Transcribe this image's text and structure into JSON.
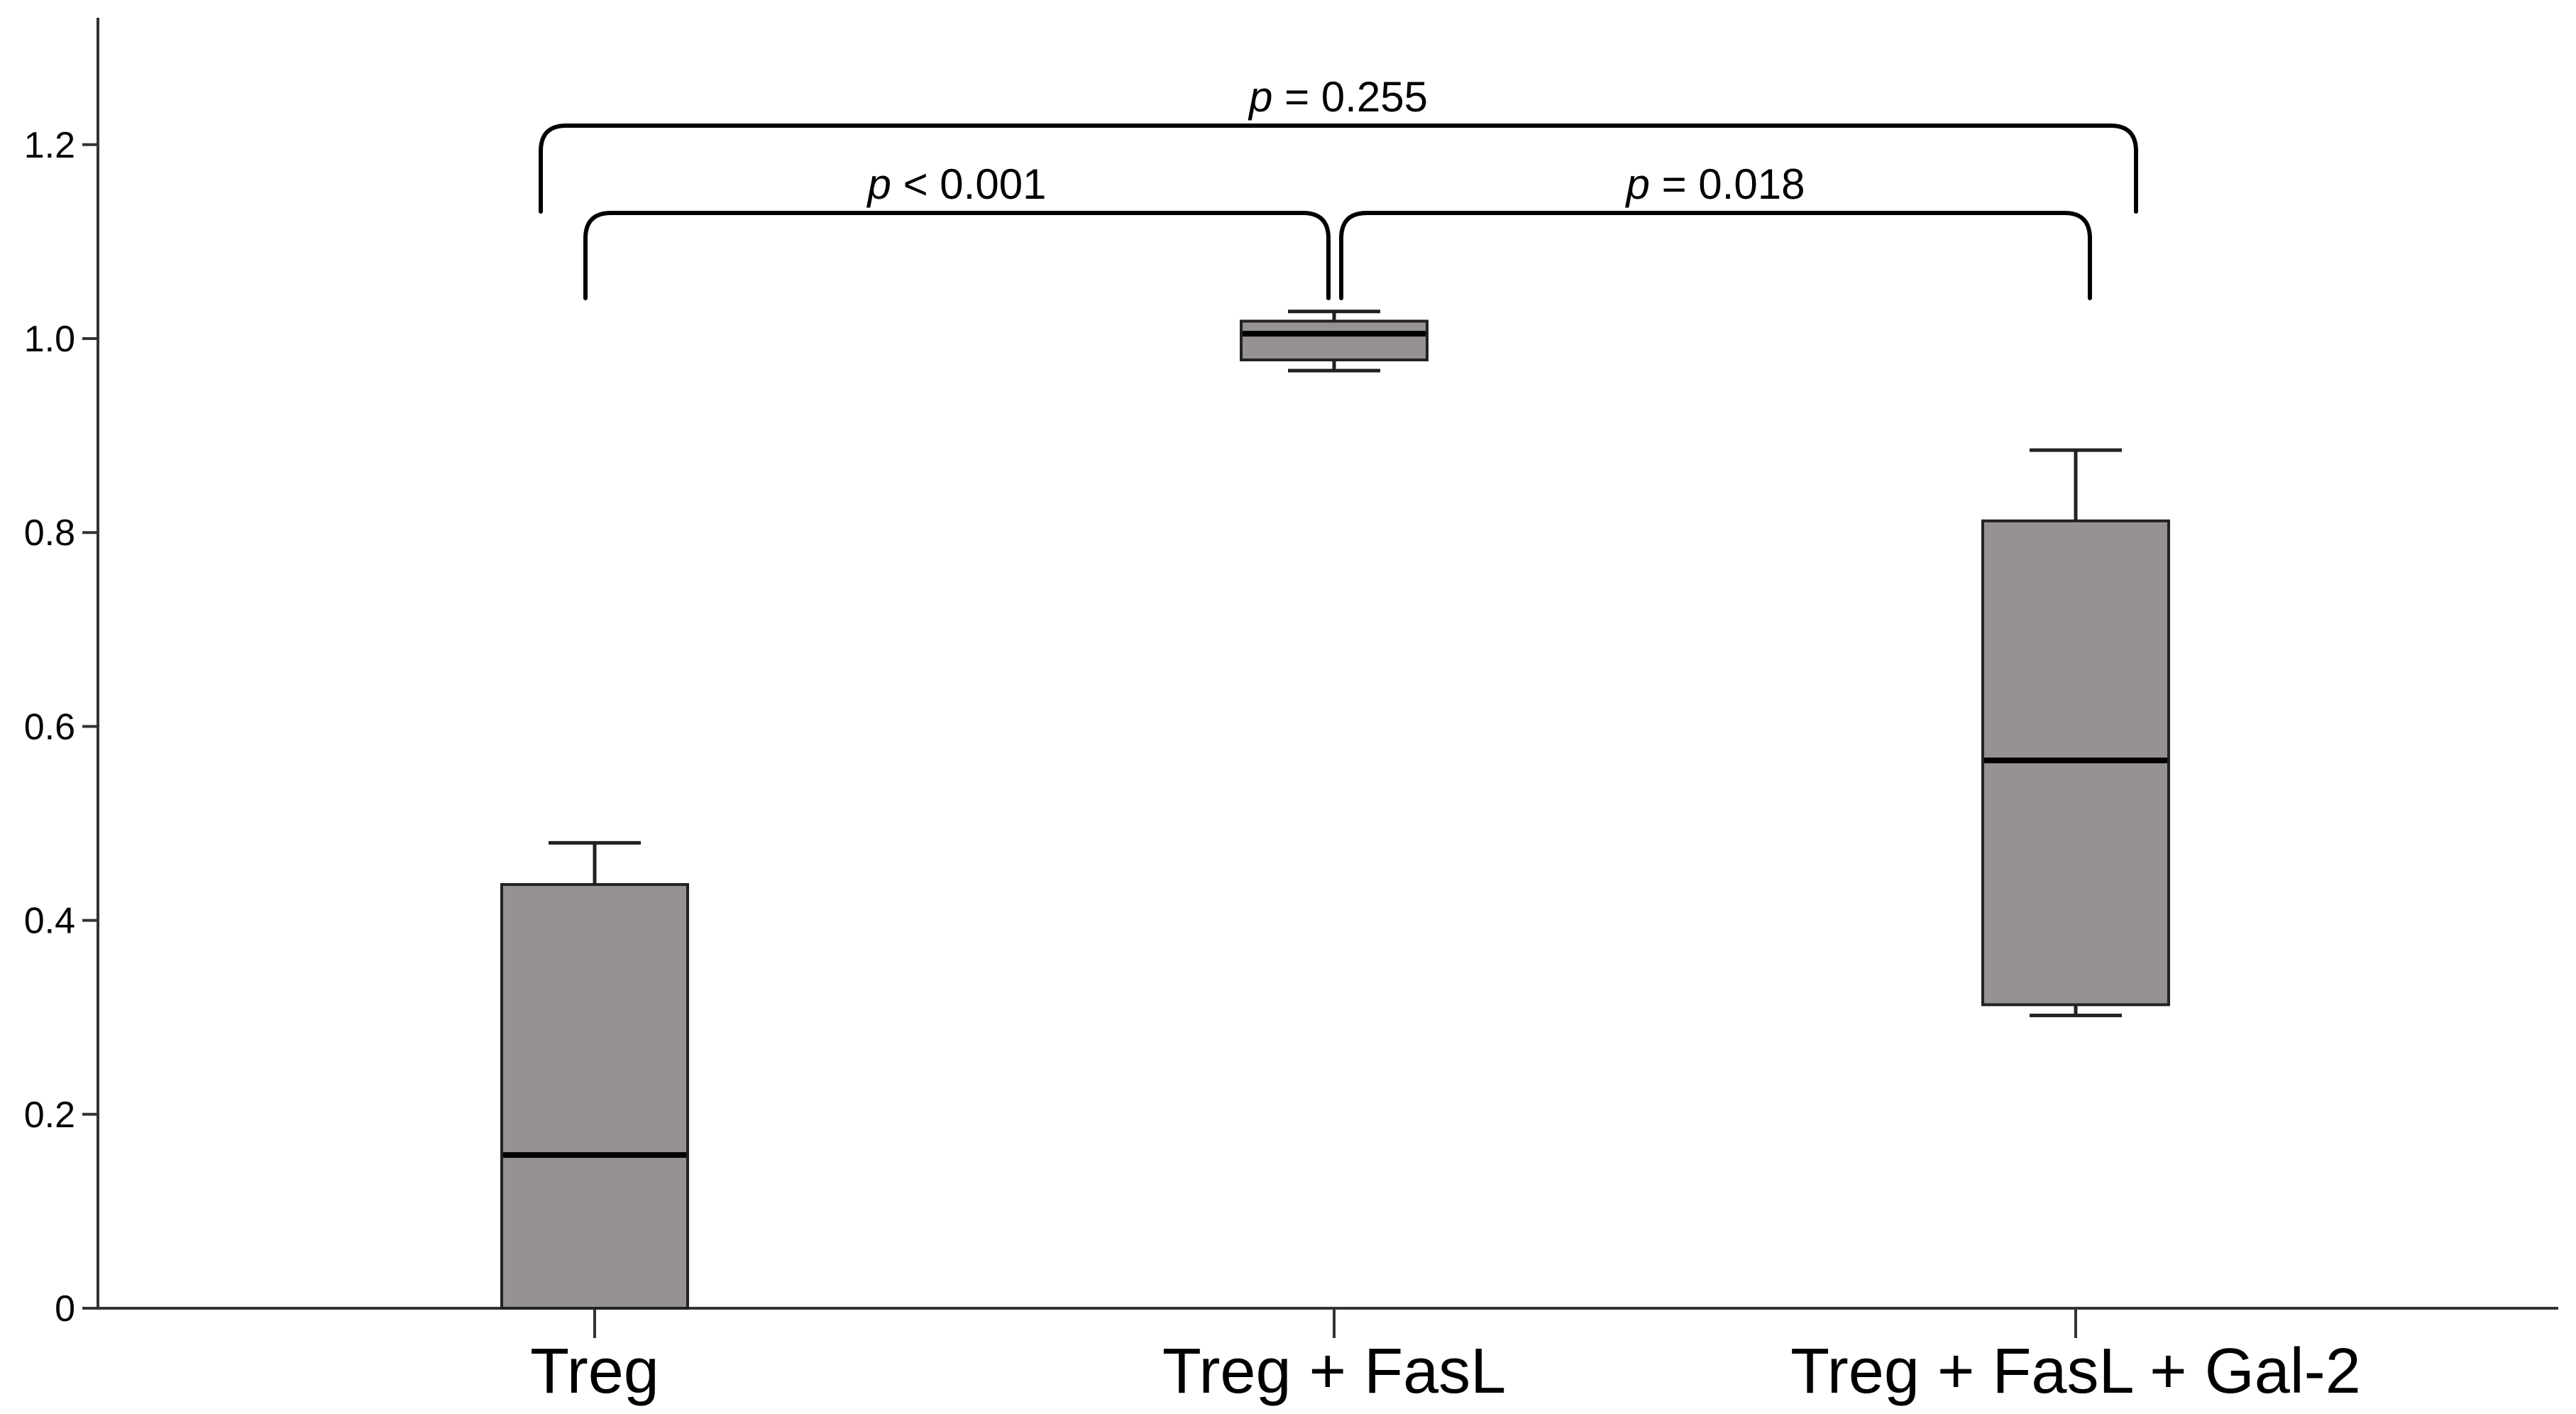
{
  "chart_data": {
    "type": "box",
    "title": "",
    "xlabel": "",
    "ylabel": "",
    "ylim": [
      0,
      1.3
    ],
    "yticks": [
      0,
      0.2,
      0.4,
      0.6,
      0.8,
      1.0,
      1.2
    ],
    "ytick_labels": [
      "0",
      "0.2",
      "0.4",
      "0.6",
      "0.8",
      "1.0",
      "1.2"
    ],
    "grid": false,
    "box_color": "#969291",
    "categories": [
      "Treg",
      "Treg + FasL",
      "Treg + FasL + Gal-2"
    ],
    "boxes": [
      {
        "name": "Treg",
        "min": 0.0,
        "q1": 0.0,
        "median": 0.158,
        "q3": 0.437,
        "max": 0.48
      },
      {
        "name": "Treg + FasL",
        "min": 0.967,
        "q1": 0.978,
        "median": 1.005,
        "q3": 1.018,
        "max": 1.028
      },
      {
        "name": "Treg + FasL + Gal-2",
        "min": 0.302,
        "q1": 0.313,
        "median": 0.565,
        "q3": 0.812,
        "max": 0.885
      }
    ],
    "comparisons": [
      {
        "from": 0,
        "to": 1,
        "label_italic": "p",
        "label_rest": " < 0.001",
        "level": 1
      },
      {
        "from": 1,
        "to": 2,
        "label_italic": "p",
        "label_rest": " = 0.018",
        "level": 1
      },
      {
        "from": 0,
        "to": 2,
        "label_italic": "p",
        "label_rest": " = 0.255",
        "level": 2
      }
    ]
  }
}
